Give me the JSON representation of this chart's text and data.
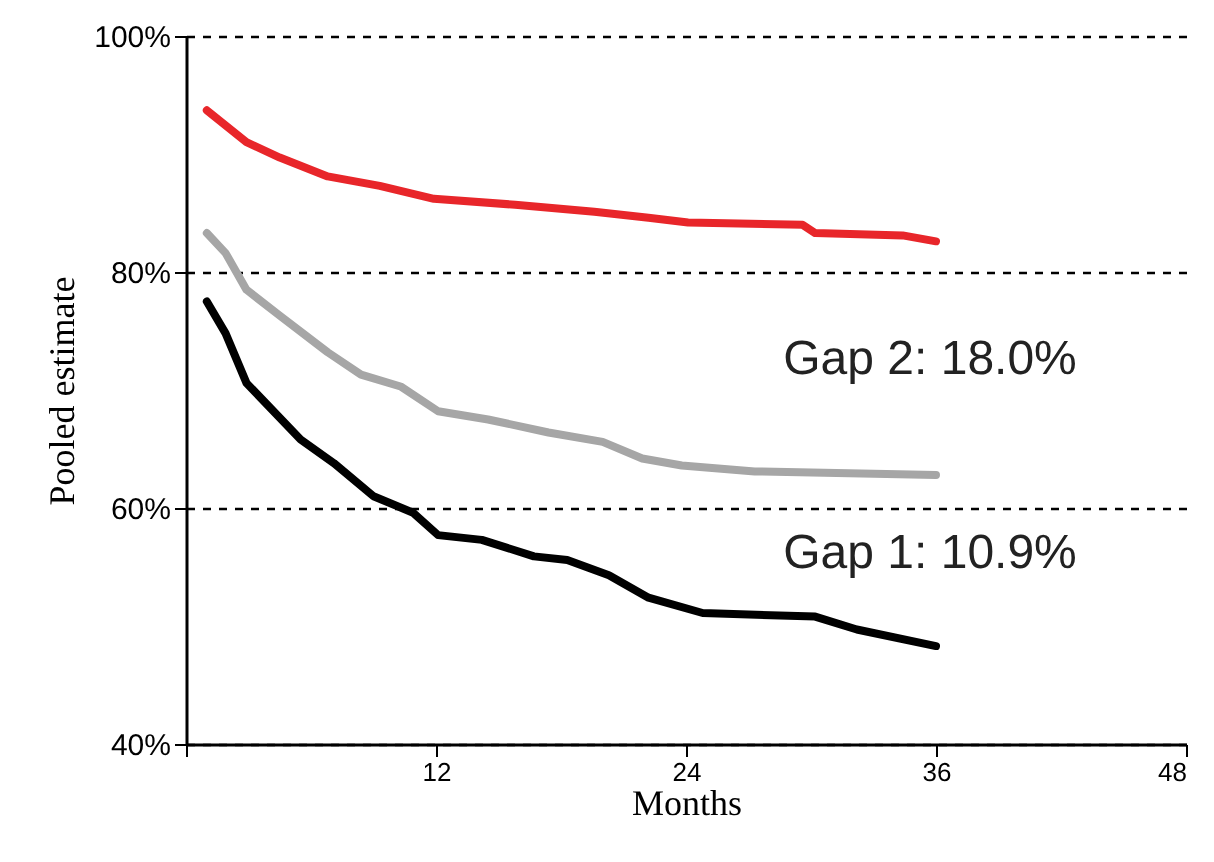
{
  "chart_data": {
    "type": "line",
    "xlabel": "Months",
    "ylabel": "Pooled estimate",
    "xlim": [
      0,
      48
    ],
    "xticks": [
      {
        "value": 0,
        "label": null
      },
      12,
      24,
      36,
      48
    ],
    "ylim": [
      40,
      100
    ],
    "yticks": [
      {
        "value": 40,
        "label": "40%"
      },
      {
        "value": 60,
        "label": "60%"
      },
      {
        "value": 80,
        "label": "80%"
      },
      {
        "value": 100,
        "label": "100%"
      }
    ],
    "grid": "y",
    "line_style": "solid",
    "marker": "none",
    "annotations": [
      "Gap 2: 18.0%",
      "Gap 1: 10.9%"
    ],
    "series": [
      {
        "color": "#e8262a",
        "x": [
          1,
          2.9,
          4.5,
          6.8,
          9.3,
          11.9,
          15.8,
          19.6,
          22.2,
          24.1,
          29.6,
          30.2,
          34.4,
          36
        ],
        "values": [
          93.7,
          91.0,
          89.7,
          88.1,
          87.3,
          86.2,
          85.7,
          85.1,
          84.6,
          84.2,
          84.0,
          83.3,
          83.1,
          82.6
        ]
      },
      {
        "color": "#a6a6a6",
        "x": [
          1,
          1.9,
          2.9,
          4.5,
          6.8,
          8.4,
          10.3,
          12.1,
          14.5,
          17.4,
          20,
          21.9,
          23.8,
          27.3,
          36
        ],
        "values": [
          83.3,
          81.6,
          78.5,
          76.3,
          73.2,
          71.3,
          70.3,
          68.2,
          67.5,
          66.4,
          65.6,
          64.2,
          63.6,
          63.1,
          62.8
        ]
      },
      {
        "color": "#000000",
        "x": [
          1,
          1.9,
          2.9,
          5.5,
          7.1,
          9,
          10.9,
          12.1,
          14.2,
          16.7,
          18.3,
          20.3,
          22.2,
          24.8,
          30.2,
          32.2,
          36
        ],
        "values": [
          77.5,
          74.8,
          70.6,
          65.8,
          63.8,
          61.0,
          59.6,
          57.7,
          57.3,
          55.9,
          55.6,
          54.3,
          52.4,
          51.1,
          50.8,
          49.7,
          48.3
        ]
      }
    ]
  }
}
